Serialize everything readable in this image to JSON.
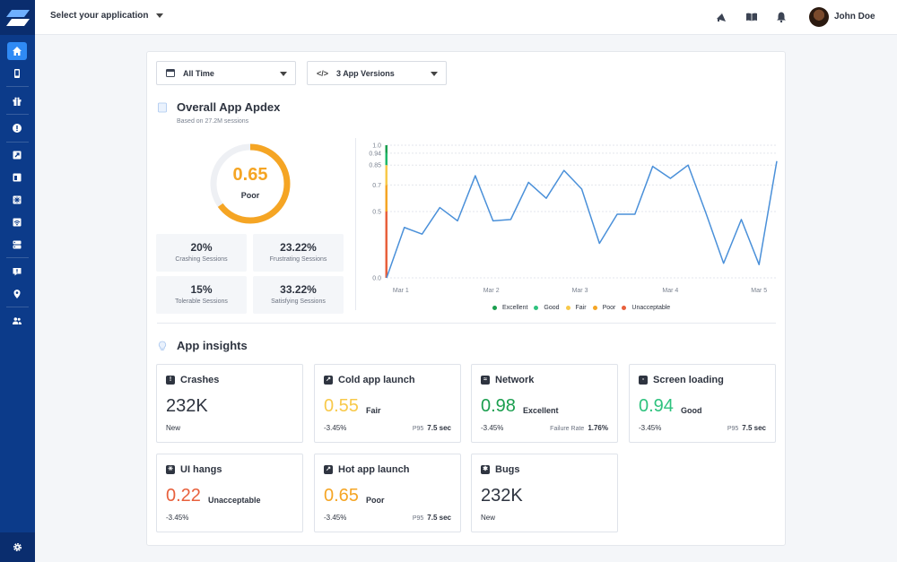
{
  "topbar": {
    "app_select_label": "Select your application",
    "user_name": "John Doe",
    "icons": [
      "megaphone-icon",
      "book-icon",
      "bell-icon"
    ]
  },
  "sidebar": {
    "items": [
      "home-icon",
      "mobile-icon",
      "gift-icon",
      "alert-icon",
      "launch-icon",
      "window-icon",
      "grid-icon",
      "wifi-icon",
      "server-icon",
      "message-icon",
      "location-icon",
      "users-icon"
    ],
    "settings": "gear-icon"
  },
  "filters": {
    "time_label": "All Time",
    "versions_label": "3 App Versions"
  },
  "apdex": {
    "title": "Overall App Apdex",
    "subtitle": "Based on 27.2M sessions",
    "score": "0.65",
    "score_fraction": 0.65,
    "rating": "Poor",
    "color": "#f5a524"
  },
  "stats": [
    {
      "value": "20%",
      "label": "Crashing Sessions"
    },
    {
      "value": "23.22%",
      "label": "Frustrating Sessions"
    },
    {
      "value": "15%",
      "label": "Tolerable Sessions"
    },
    {
      "value": "33.22%",
      "label": "Satisfying Sessions"
    }
  ],
  "chart_data": {
    "type": "line",
    "x_ticks": [
      "Mar 1",
      "Mar 2",
      "Mar 3",
      "Mar 4",
      "Mar 5"
    ],
    "y_ticks": [
      "1.0",
      "0.94",
      "0.85",
      "0.7",
      "0.5",
      "0.0"
    ],
    "ylim": [
      0,
      1.0
    ],
    "grid": true,
    "legend_position": "bottom",
    "series": [
      {
        "values": [
          0.0,
          0.38,
          0.33,
          0.53,
          0.43,
          0.77,
          0.43,
          0.44,
          0.72,
          0.6,
          0.81,
          0.67,
          0.26,
          0.48,
          0.48,
          0.84,
          0.75,
          0.85,
          0.49,
          0.11,
          0.44,
          0.1,
          0.88
        ],
        "color": "#4a90d9"
      }
    ],
    "rating_bands": [
      {
        "from": 0.0,
        "to": 0.5,
        "color": "#e8603c"
      },
      {
        "from": 0.5,
        "to": 0.7,
        "color": "#f5a524"
      },
      {
        "from": 0.7,
        "to": 0.85,
        "color": "#f8c94a"
      },
      {
        "from": 0.85,
        "to": 0.94,
        "color": "#1fb86a"
      },
      {
        "from": 0.94,
        "to": 1.0,
        "color": "#1a9e4e"
      }
    ],
    "legend": [
      {
        "label": "Excellent",
        "color": "#1a9e4e"
      },
      {
        "label": "Good",
        "color": "#2ec27e"
      },
      {
        "label": "Fair",
        "color": "#f8c94a"
      },
      {
        "label": "Poor",
        "color": "#f5a524"
      },
      {
        "label": "Unacceptable",
        "color": "#e8603c"
      }
    ]
  },
  "insights": {
    "title": "App insights",
    "cards": [
      {
        "title": "Crashes",
        "icon": "alert-icon",
        "value": "232K",
        "value_color": "#2e3440",
        "rating": "",
        "sub": "New",
        "metric_label": "",
        "metric_value": ""
      },
      {
        "title": "Cold app launch",
        "icon": "launch-icon",
        "value": "0.55",
        "value_color": "#f8c94a",
        "rating": "Fair",
        "sub": "-3.45%",
        "metric_label": "P95",
        "metric_value": "7.5 sec"
      },
      {
        "title": "Network",
        "icon": "wifi-icon",
        "value": "0.98",
        "value_color": "#1a9e4e",
        "rating": "Excellent",
        "sub": "-3.45%",
        "metric_label": "Failure Rate",
        "metric_value": "1.76%"
      },
      {
        "title": "Screen loading",
        "icon": "window-icon",
        "value": "0.94",
        "value_color": "#2ec27e",
        "rating": "Good",
        "sub": "-3.45%",
        "metric_label": "P95",
        "metric_value": "7.5 sec"
      },
      {
        "title": "UI hangs",
        "icon": "grid-icon",
        "value": "0.22",
        "value_color": "#e8603c",
        "rating": "Unacceptable",
        "sub": "-3.45%",
        "metric_label": "",
        "metric_value": ""
      },
      {
        "title": "Hot app launch",
        "icon": "launch-icon",
        "value": "0.65",
        "value_color": "#f5a524",
        "rating": "Poor",
        "sub": "-3.45%",
        "metric_label": "P95",
        "metric_value": "7.5 sec"
      },
      {
        "title": "Bugs",
        "icon": "bug-icon",
        "value": "232K",
        "value_color": "#2e3440",
        "rating": "",
        "sub": "New",
        "metric_label": "",
        "metric_value": ""
      }
    ]
  }
}
